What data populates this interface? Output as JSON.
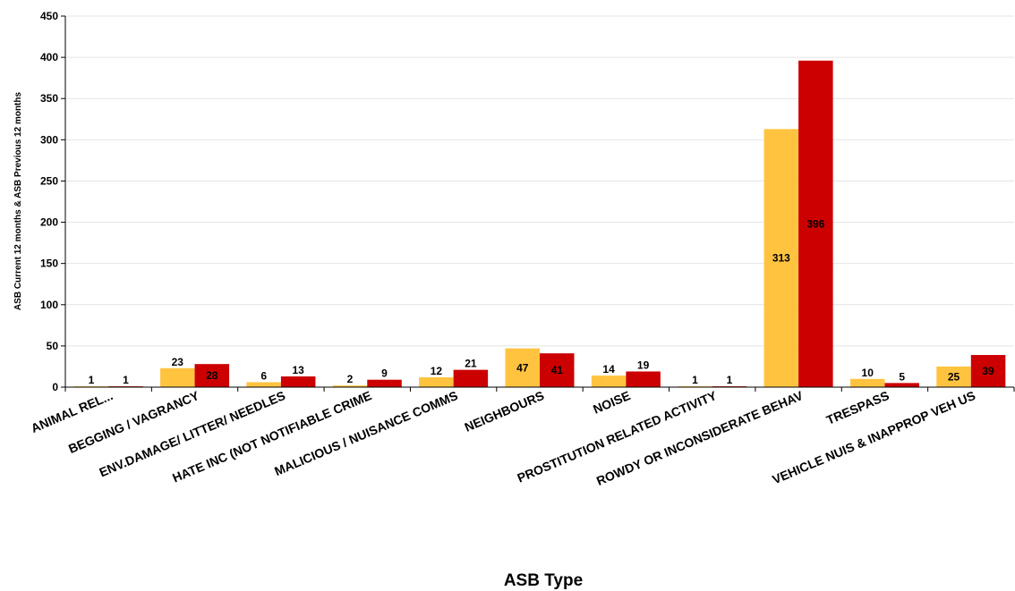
{
  "chart_data": {
    "type": "bar",
    "xlabel": "ASB Type",
    "ylabel": "ASB Current 12 months & ASB Previous 12 months",
    "ylim": [
      0,
      450
    ],
    "yticks": [
      0,
      50,
      100,
      150,
      200,
      250,
      300,
      350,
      400,
      450
    ],
    "grid": true,
    "categories": [
      "ANIMAL REL...",
      "BEGGING / VAGRANCY",
      "ENV.DAMAGE/ LITTER/ NEEDLES",
      "HATE INC (NOT NOTIFIABLE CRIME",
      "MALICIOUS / NUISANCE COMMS",
      "NEIGHBOURS",
      "NOISE",
      "PROSTITUTION RELATED ACTIVITY",
      "ROWDY OR INCONSIDERATE BEHAV",
      "TRESPASS",
      "VEHICLE NUIS & INAPPROP VEH US"
    ],
    "series": [
      {
        "values": [
          1,
          23,
          6,
          2,
          12,
          47,
          14,
          1,
          313,
          10,
          25
        ],
        "color": "#FFC340"
      },
      {
        "values": [
          1,
          28,
          13,
          9,
          21,
          41,
          19,
          1,
          396,
          5,
          39
        ],
        "color": "#CC0000"
      }
    ]
  }
}
